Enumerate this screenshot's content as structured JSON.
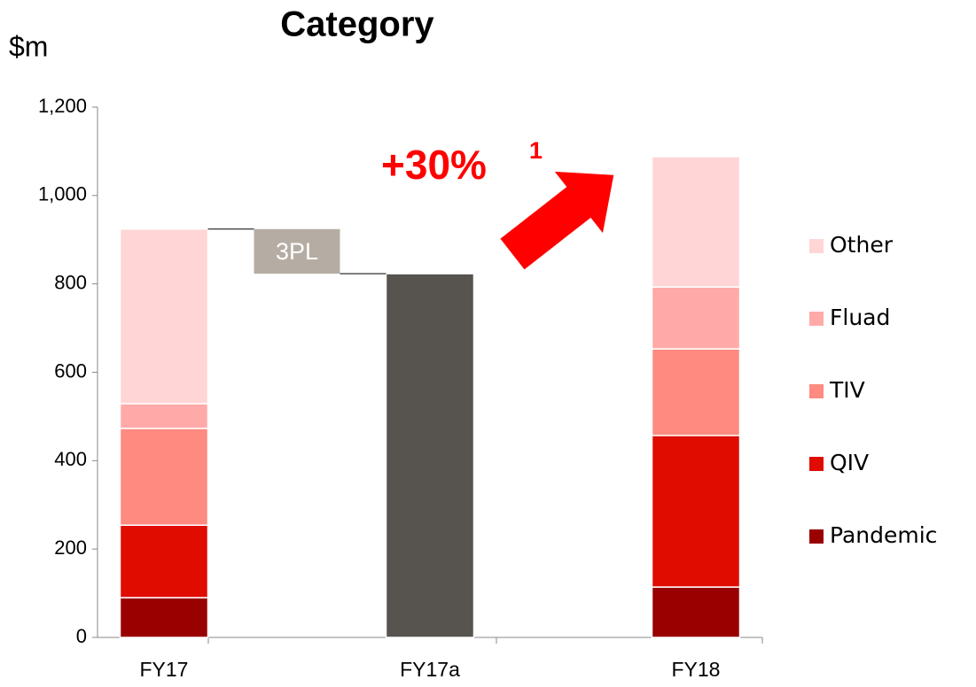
{
  "chart_data": {
    "type": "stacked_bar",
    "title": "Category",
    "y_label": "$m",
    "categories": [
      "FY17",
      "FY17a",
      "FY18"
    ],
    "series": [
      {
        "name": "Pandemic",
        "color": "#990000",
        "values": [
          90,
          null,
          114
        ]
      },
      {
        "name": "QIV",
        "color": "#e00c00",
        "values": [
          164,
          null,
          343
        ]
      },
      {
        "name": "TIV",
        "color": "#ff8a80",
        "values": [
          219,
          null,
          196
        ]
      },
      {
        "name": "Fluad",
        "color": "#ffaaa8",
        "values": [
          56,
          null,
          140
        ]
      },
      {
        "name": "Other",
        "color": "#ffd5d5",
        "values": [
          395,
          null,
          295
        ]
      },
      {
        "color": "#57534f",
        "values": [
          null,
          823,
          null
        ]
      }
    ],
    "bridge_label": "3PL",
    "annotation": {
      "text": "+30%",
      "superscript": "1",
      "color": "#ff0000"
    },
    "ylim": [
      0,
      1200
    ],
    "yticks": [
      0,
      200,
      400,
      600,
      800,
      {
        "value": 1000,
        "label": "1,000"
      },
      {
        "value": 1200,
        "label": "1,200"
      }
    ],
    "legend": "right"
  }
}
